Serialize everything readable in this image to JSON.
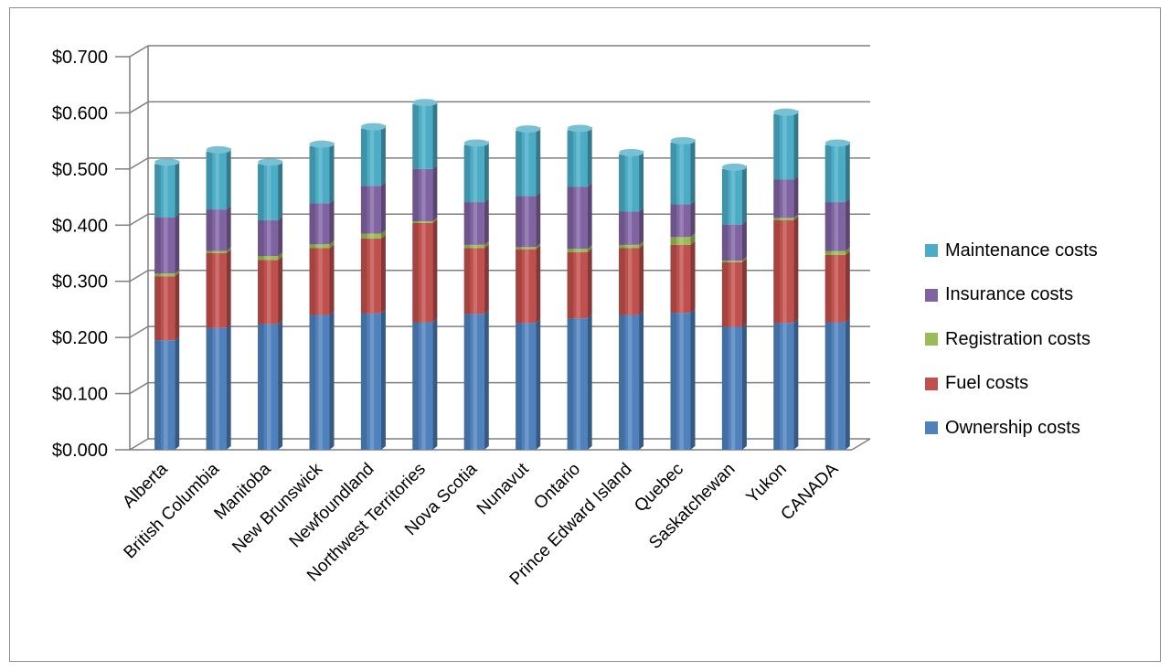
{
  "chart_data": {
    "type": "bar",
    "stacked": true,
    "categories": [
      "Alberta",
      "British Columbia",
      "Manitoba",
      "New Brunswick",
      "Newfoundland",
      "Northwest Territories",
      "Nova Scotia",
      "Nunavut",
      "Ontario",
      "Prince Edward Island",
      "Quebec",
      "Saskatchewan",
      "Yukon",
      "CANADA"
    ],
    "series": [
      {
        "name": "Ownership costs",
        "color": "#4F81BD",
        "values": [
          0.195,
          0.217,
          0.224,
          0.24,
          0.243,
          0.227,
          0.242,
          0.226,
          0.234,
          0.24,
          0.244,
          0.219,
          0.226,
          0.227
        ]
      },
      {
        "name": "Fuel costs",
        "color": "#C0504D",
        "values": [
          0.114,
          0.133,
          0.114,
          0.119,
          0.133,
          0.177,
          0.117,
          0.131,
          0.118,
          0.119,
          0.121,
          0.115,
          0.183,
          0.12
        ]
      },
      {
        "name": "Registration costs",
        "color": "#9BBB59",
        "values": [
          0.005,
          0.004,
          0.007,
          0.007,
          0.009,
          0.003,
          0.006,
          0.004,
          0.006,
          0.006,
          0.014,
          0.003,
          0.004,
          0.007
        ]
      },
      {
        "name": "Insurance costs",
        "color": "#8064A2",
        "values": [
          0.1,
          0.074,
          0.064,
          0.073,
          0.085,
          0.093,
          0.076,
          0.091,
          0.11,
          0.059,
          0.058,
          0.064,
          0.068,
          0.087
        ]
      },
      {
        "name": "Maintenance costs",
        "color": "#4BACC6",
        "values": [
          0.095,
          0.103,
          0.1,
          0.102,
          0.102,
          0.115,
          0.102,
          0.116,
          0.101,
          0.102,
          0.11,
          0.099,
          0.117,
          0.102
        ]
      }
    ],
    "ylim": [
      0,
      0.7
    ],
    "yticks": [
      "$0.000",
      "$0.100",
      "$0.200",
      "$0.300",
      "$0.400",
      "$0.500",
      "$0.600",
      "$0.700"
    ],
    "grid": true,
    "legend_position": "right"
  }
}
